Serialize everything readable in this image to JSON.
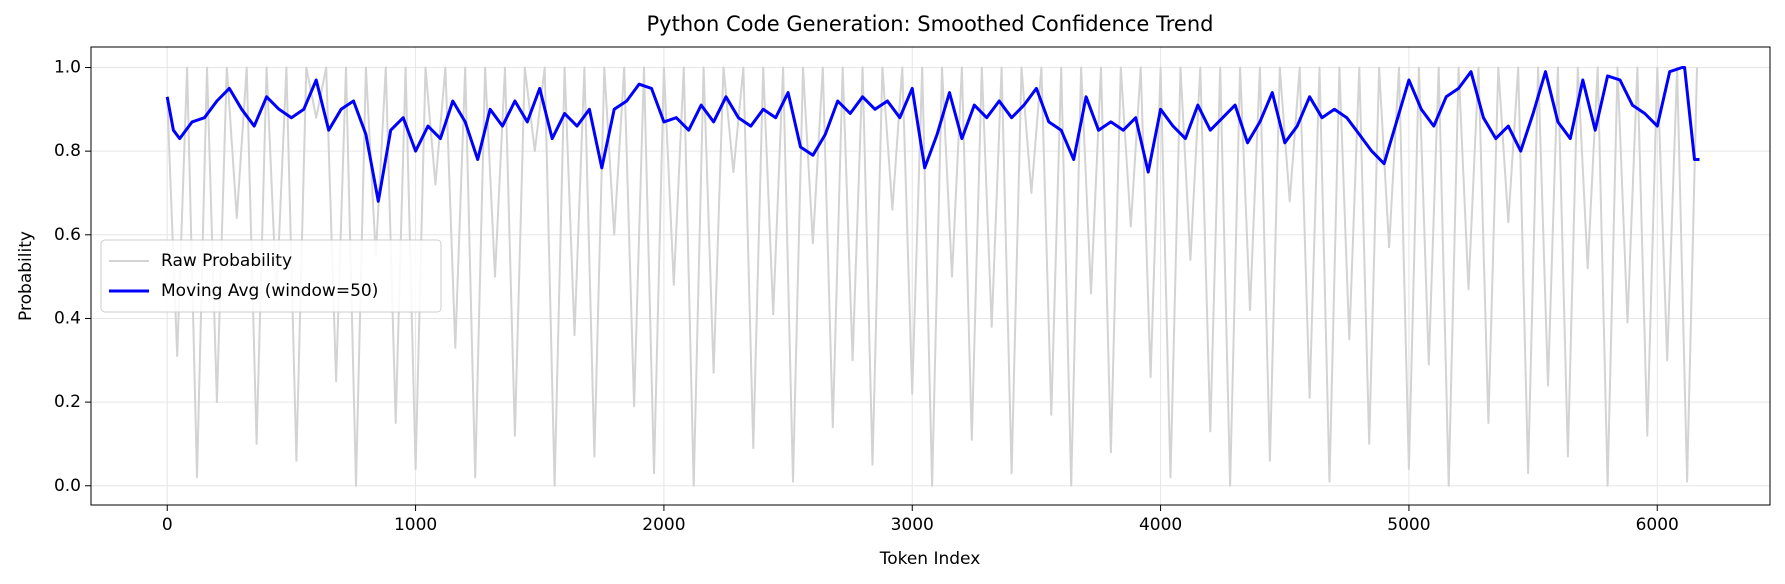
{
  "chart_data": {
    "type": "line",
    "title": "Python Code Generation: Smoothed Confidence Trend",
    "x_label": "Token Index",
    "y_label": "Probability",
    "xlim": [
      -307,
      6454
    ],
    "ylim": [
      -0.046,
      1.049
    ],
    "xticks": [
      0,
      1000,
      2000,
      3000,
      4000,
      5000,
      6000
    ],
    "yticks": [
      {
        "value": 0,
        "label": "0.0"
      },
      {
        "value": 0.2,
        "label": "0.2"
      },
      {
        "value": 0.4,
        "label": "0.4"
      },
      {
        "value": 0.6,
        "label": "0.6"
      },
      {
        "value": 0.8,
        "label": "0.8"
      },
      {
        "value": 1,
        "label": "1.0"
      }
    ],
    "grid": true,
    "legend": "center left",
    "series": [
      {
        "name": "Raw Probability",
        "color": "#d3d3d3",
        "width": 2,
        "x": [
          0,
          40,
          80,
          120,
          160,
          200,
          240,
          280,
          320,
          360,
          400,
          440,
          480,
          520,
          560,
          600,
          640,
          680,
          720,
          760,
          800,
          840,
          880,
          920,
          960,
          1000,
          1040,
          1080,
          1120,
          1160,
          1200,
          1240,
          1280,
          1320,
          1360,
          1400,
          1440,
          1480,
          1520,
          1560,
          1600,
          1640,
          1680,
          1720,
          1760,
          1800,
          1840,
          1880,
          1920,
          1960,
          2000,
          2040,
          2080,
          2120,
          2160,
          2200,
          2240,
          2280,
          2320,
          2360,
          2400,
          2440,
          2480,
          2520,
          2560,
          2600,
          2640,
          2680,
          2720,
          2760,
          2800,
          2840,
          2880,
          2920,
          2960,
          3000,
          3040,
          3080,
          3120,
          3160,
          3200,
          3240,
          3280,
          3320,
          3360,
          3400,
          3440,
          3480,
          3520,
          3560,
          3600,
          3640,
          3680,
          3720,
          3760,
          3800,
          3840,
          3880,
          3920,
          3960,
          4000,
          4040,
          4080,
          4120,
          4160,
          4200,
          4240,
          4280,
          4320,
          4360,
          4400,
          4440,
          4480,
          4520,
          4560,
          4600,
          4640,
          4680,
          4720,
          4760,
          4800,
          4840,
          4880,
          4920,
          4960,
          5000,
          5040,
          5080,
          5120,
          5160,
          5200,
          5240,
          5280,
          5320,
          5360,
          5400,
          5440,
          5480,
          5520,
          5560,
          5600,
          5640,
          5680,
          5720,
          5760,
          5800,
          5840,
          5880,
          5920,
          5960,
          6000,
          6040,
          6080,
          6120,
          6160
        ],
        "values": [
          0.93,
          0.31,
          1,
          0.02,
          1,
          0.2,
          1,
          0.64,
          1,
          0.1,
          1,
          0.45,
          1,
          0.06,
          1,
          0.88,
          1,
          0.25,
          1,
          0.0,
          1,
          0.55,
          1,
          0.15,
          1,
          0.04,
          1,
          0.72,
          1,
          0.33,
          1,
          0.02,
          1,
          0.5,
          1,
          0.12,
          1,
          0.8,
          1,
          0.0,
          1,
          0.36,
          1,
          0.07,
          1,
          0.6,
          1,
          0.19,
          1,
          0.03,
          1,
          0.48,
          1,
          0.0,
          1,
          0.27,
          1,
          0.75,
          1,
          0.09,
          1,
          0.41,
          1,
          0.01,
          1,
          0.58,
          1,
          0.14,
          1,
          0.3,
          1,
          0.05,
          1,
          0.66,
          1,
          0.22,
          1,
          0.0,
          1,
          0.5,
          1,
          0.11,
          1,
          0.38,
          1,
          0.03,
          1,
          0.7,
          1,
          0.17,
          1,
          0.0,
          1,
          0.46,
          1,
          0.08,
          1,
          0.62,
          1,
          0.26,
          1,
          0.02,
          1,
          0.54,
          1,
          0.13,
          1,
          0.0,
          1,
          0.42,
          1,
          0.06,
          1,
          0.68,
          1,
          0.21,
          1,
          0.01,
          1,
          0.35,
          1,
          0.1,
          1,
          0.57,
          1,
          0.04,
          1,
          0.29,
          1,
          0.0,
          1,
          0.47,
          1,
          0.15,
          1,
          0.63,
          1,
          0.03,
          1,
          0.24,
          1,
          0.07,
          1,
          0.52,
          1,
          0.0,
          1,
          0.39,
          1,
          0.12,
          1,
          0.3,
          1,
          0.01,
          1
        ]
      },
      {
        "name": "Moving Avg (window=50)",
        "color": "#0000ff",
        "width": 3,
        "x": [
          0,
          25,
          50,
          100,
          150,
          200,
          250,
          300,
          350,
          400,
          450,
          500,
          550,
          600,
          650,
          700,
          750,
          800,
          850,
          900,
          950,
          1000,
          1050,
          1100,
          1150,
          1200,
          1250,
          1300,
          1350,
          1400,
          1450,
          1500,
          1550,
          1600,
          1650,
          1700,
          1750,
          1800,
          1850,
          1900,
          1950,
          2000,
          2050,
          2100,
          2150,
          2200,
          2250,
          2300,
          2350,
          2400,
          2450,
          2500,
          2550,
          2600,
          2650,
          2700,
          2750,
          2800,
          2850,
          2900,
          2950,
          3000,
          3050,
          3100,
          3150,
          3200,
          3250,
          3300,
          3350,
          3400,
          3450,
          3500,
          3550,
          3600,
          3650,
          3700,
          3750,
          3800,
          3850,
          3900,
          3950,
          4000,
          4050,
          4100,
          4150,
          4200,
          4250,
          4300,
          4350,
          4400,
          4450,
          4500,
          4550,
          4600,
          4650,
          4700,
          4750,
          4800,
          4850,
          4900,
          4950,
          5000,
          5050,
          5100,
          5150,
          5200,
          5250,
          5300,
          5350,
          5400,
          5450,
          5500,
          5550,
          5600,
          5650,
          5700,
          5750,
          5800,
          5850,
          5900,
          5950,
          6000,
          6050,
          6100,
          6110,
          6150,
          6170
        ],
        "values": [
          0.93,
          0.85,
          0.83,
          0.87,
          0.88,
          0.92,
          0.95,
          0.9,
          0.86,
          0.93,
          0.9,
          0.88,
          0.9,
          0.97,
          0.85,
          0.9,
          0.92,
          0.84,
          0.68,
          0.85,
          0.88,
          0.8,
          0.86,
          0.83,
          0.92,
          0.87,
          0.78,
          0.9,
          0.86,
          0.92,
          0.87,
          0.95,
          0.83,
          0.89,
          0.86,
          0.9,
          0.76,
          0.9,
          0.92,
          0.96,
          0.95,
          0.87,
          0.88,
          0.85,
          0.91,
          0.87,
          0.93,
          0.88,
          0.86,
          0.9,
          0.88,
          0.94,
          0.81,
          0.79,
          0.84,
          0.92,
          0.89,
          0.93,
          0.9,
          0.92,
          0.88,
          0.95,
          0.76,
          0.84,
          0.94,
          0.83,
          0.91,
          0.88,
          0.92,
          0.88,
          0.91,
          0.95,
          0.87,
          0.85,
          0.78,
          0.93,
          0.85,
          0.87,
          0.85,
          0.88,
          0.75,
          0.9,
          0.86,
          0.83,
          0.91,
          0.85,
          0.88,
          0.91,
          0.82,
          0.87,
          0.94,
          0.82,
          0.86,
          0.93,
          0.88,
          0.9,
          0.88,
          0.84,
          0.8,
          0.77,
          0.87,
          0.97,
          0.9,
          0.86,
          0.93,
          0.95,
          0.99,
          0.88,
          0.83,
          0.86,
          0.8,
          0.89,
          0.99,
          0.87,
          0.83,
          0.97,
          0.85,
          0.98,
          0.97,
          0.91,
          0.89,
          0.86,
          0.99,
          1.0,
          1.0,
          0.78,
          0.78
        ]
      }
    ]
  }
}
